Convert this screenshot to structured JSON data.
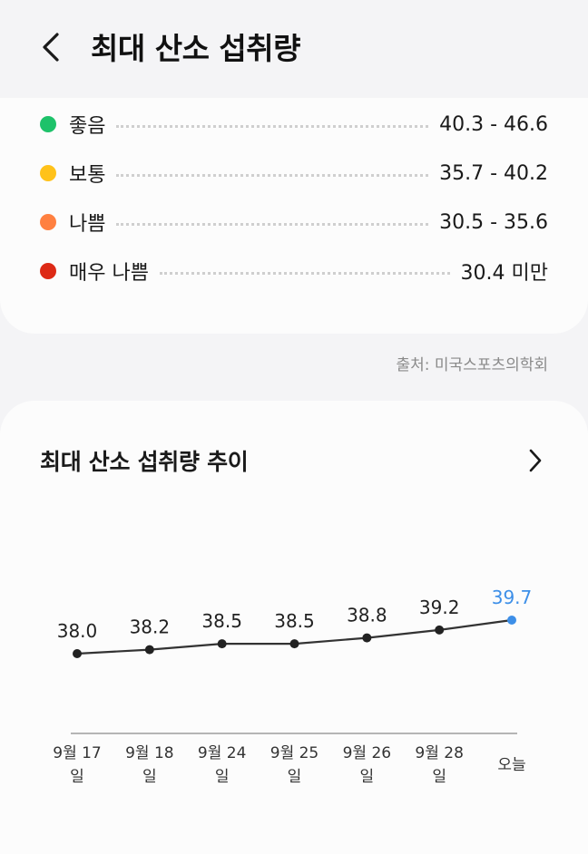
{
  "header": {
    "title": "최대 산소 섭취량",
    "back_icon": "chevron-left-icon"
  },
  "legend": {
    "items": [
      {
        "label": "좋음",
        "range": "40.3 - 46.6",
        "color": "#1ec26a"
      },
      {
        "label": "보통",
        "range": "35.7 - 40.2",
        "color": "#ffc21a"
      },
      {
        "label": "나쁨",
        "range": "30.5 - 35.6",
        "color": "#ff8040"
      },
      {
        "label": "매우 나쁨",
        "range": "30.4 미만",
        "color": "#dd2a16"
      }
    ]
  },
  "source": "출처: 미국스포츠의학회",
  "trend": {
    "title": "최대 산소 섭취량 추이",
    "more_icon": "chevron-right-icon"
  },
  "chart_data": {
    "type": "line",
    "title": "",
    "xlabel": "",
    "ylabel": "",
    "categories": [
      "9월 17\n일",
      "9월 18\n일",
      "9월 24\n일",
      "9월 25\n일",
      "9월 26\n일",
      "9월 28\n일",
      "오늘"
    ],
    "values": [
      38.0,
      38.2,
      38.5,
      38.5,
      38.8,
      39.2,
      39.7
    ],
    "value_labels": [
      "38.0",
      "38.2",
      "38.5",
      "38.5",
      "38.8",
      "39.2",
      "39.7"
    ],
    "highlight_index": 6,
    "line_color": "#333333",
    "highlight_color": "#3d8fe8",
    "grid": false
  }
}
